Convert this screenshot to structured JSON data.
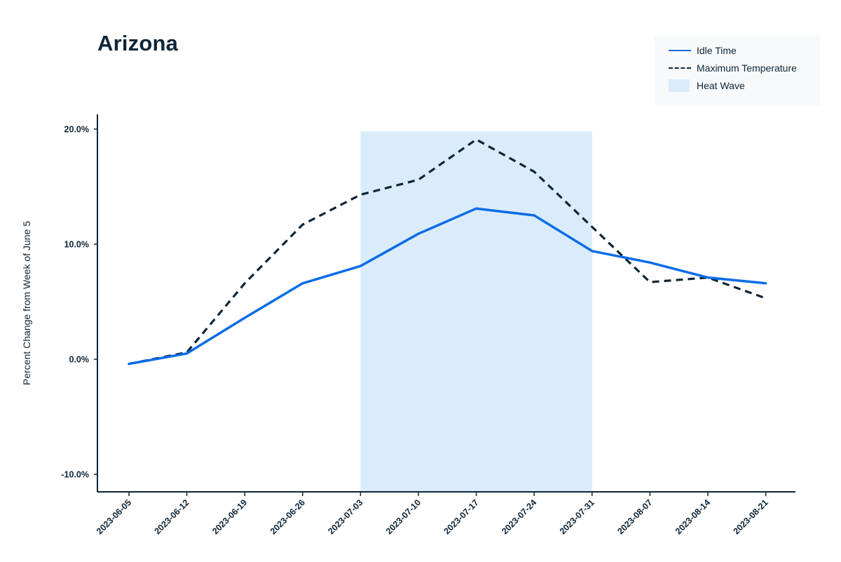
{
  "chart_data": {
    "type": "line",
    "title": "Arizona",
    "xlabel": "",
    "ylabel": "Percent Change from Week of June 5",
    "x": [
      "2023-06-05",
      "2023-06-12",
      "2023-06-19",
      "2023-06-26",
      "2023-07-03",
      "2023-07-10",
      "2023-07-17",
      "2023-07-24",
      "2023-07-31",
      "2023-08-07",
      "2023-08-14",
      "2023-08-21"
    ],
    "ylim": [
      -11.5,
      21.2
    ],
    "yticks": [
      -10,
      0,
      10,
      20
    ],
    "ytick_labels": [
      "-10.0%",
      "0.0%",
      "10.0%",
      "20.0%"
    ],
    "series": [
      {
        "name": "Idle Time",
        "style": "solid",
        "color": "#0a6ce6",
        "values": [
          -0.4,
          0.5,
          3.6,
          6.6,
          8.1,
          10.9,
          13.1,
          12.5,
          9.4,
          8.4,
          7.1,
          6.6
        ]
      },
      {
        "name": "Maximum Temperature",
        "style": "dashed",
        "color": "#0d2537",
        "values": [
          -0.4,
          0.6,
          6.6,
          11.7,
          14.3,
          15.6,
          19.1,
          16.3,
          11.5,
          6.7,
          7.1,
          5.3
        ]
      }
    ],
    "shaded_regions": [
      {
        "name": "Heat Wave",
        "x_start": "2023-07-03",
        "x_end": "2023-07-31",
        "y_top": 19.8,
        "color": "#daecfb"
      }
    ],
    "legend": {
      "position": "top-right"
    },
    "grid": false
  }
}
